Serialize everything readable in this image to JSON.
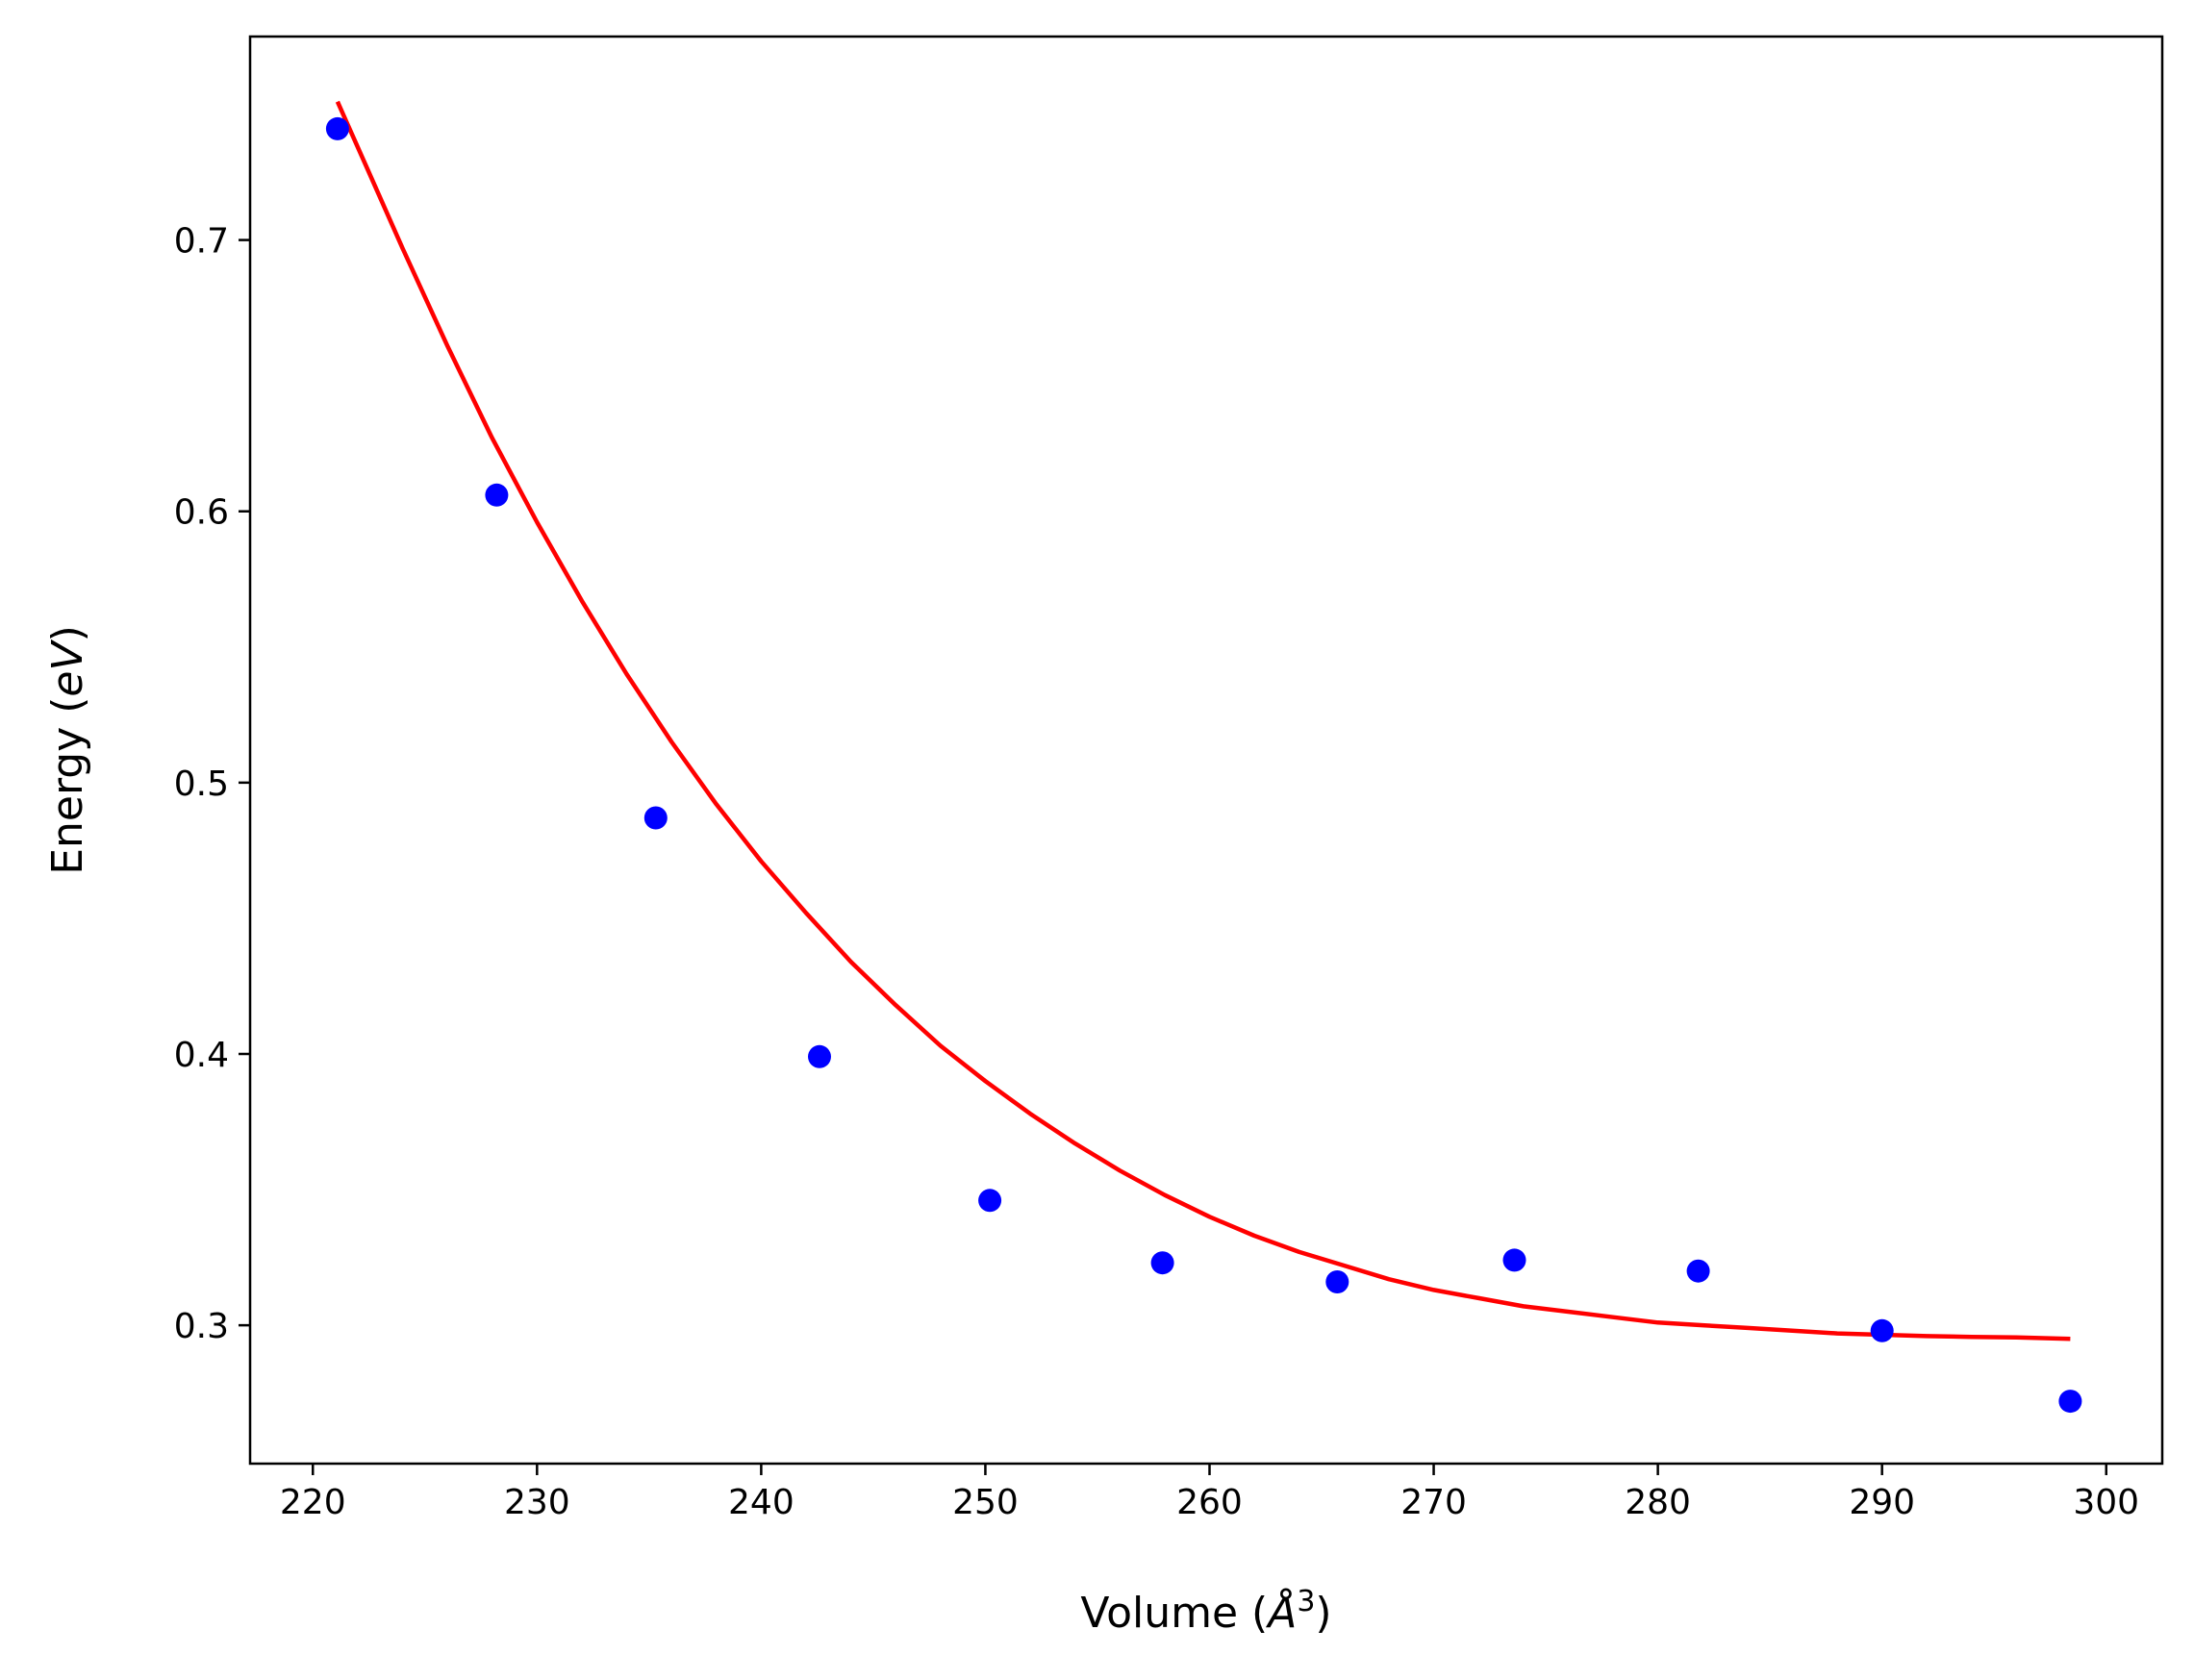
{
  "chart_data": {
    "type": "scatter",
    "xlabel": {
      "prefix": "Volume (",
      "symbol": "Å",
      "sup": "3",
      "suffix": ")"
    },
    "ylabel": {
      "prefix": "Energy (",
      "italic": "eV",
      "suffix": ")"
    },
    "xlim": [
      217.2,
      302.5
    ],
    "ylim": [
      0.249,
      0.775
    ],
    "xticks": [
      220,
      230,
      240,
      250,
      260,
      270,
      280,
      290,
      300
    ],
    "yticks": [
      0.3,
      0.4,
      0.5,
      0.6,
      0.7
    ],
    "grid": false,
    "legend": "none",
    "series": [
      {
        "kind": "points",
        "color": "#0000ff",
        "x": [
          221.1,
          228.2,
          235.3,
          242.6,
          250.2,
          257.9,
          265.7,
          273.6,
          281.8,
          290.0,
          298.4
        ],
        "y": [
          0.741,
          0.606,
          0.487,
          0.399,
          0.346,
          0.323,
          0.316,
          0.324,
          0.32,
          0.298,
          0.272
        ]
      },
      {
        "kind": "fit-line",
        "color": "#ff0000",
        "x": [
          221.1,
          222.5,
          224,
          226,
          228,
          230,
          232,
          234,
          236,
          238,
          240,
          242,
          244,
          246,
          248,
          250,
          252,
          254,
          256,
          258,
          260,
          262,
          264,
          266,
          268,
          270,
          272,
          274,
          276,
          278,
          280,
          282,
          284,
          286,
          288,
          290,
          292,
          294,
          296,
          298.4
        ],
        "y": [
          0.751,
          0.725,
          0.697,
          0.661,
          0.627,
          0.596,
          0.567,
          0.54,
          0.515,
          0.492,
          0.471,
          0.452,
          0.434,
          0.418,
          0.403,
          0.39,
          0.378,
          0.367,
          0.357,
          0.348,
          0.34,
          0.333,
          0.327,
          0.322,
          0.317,
          0.313,
          0.31,
          0.307,
          0.305,
          0.303,
          0.301,
          0.3,
          0.299,
          0.298,
          0.297,
          0.2965,
          0.296,
          0.2957,
          0.2955,
          0.295
        ]
      }
    ]
  }
}
